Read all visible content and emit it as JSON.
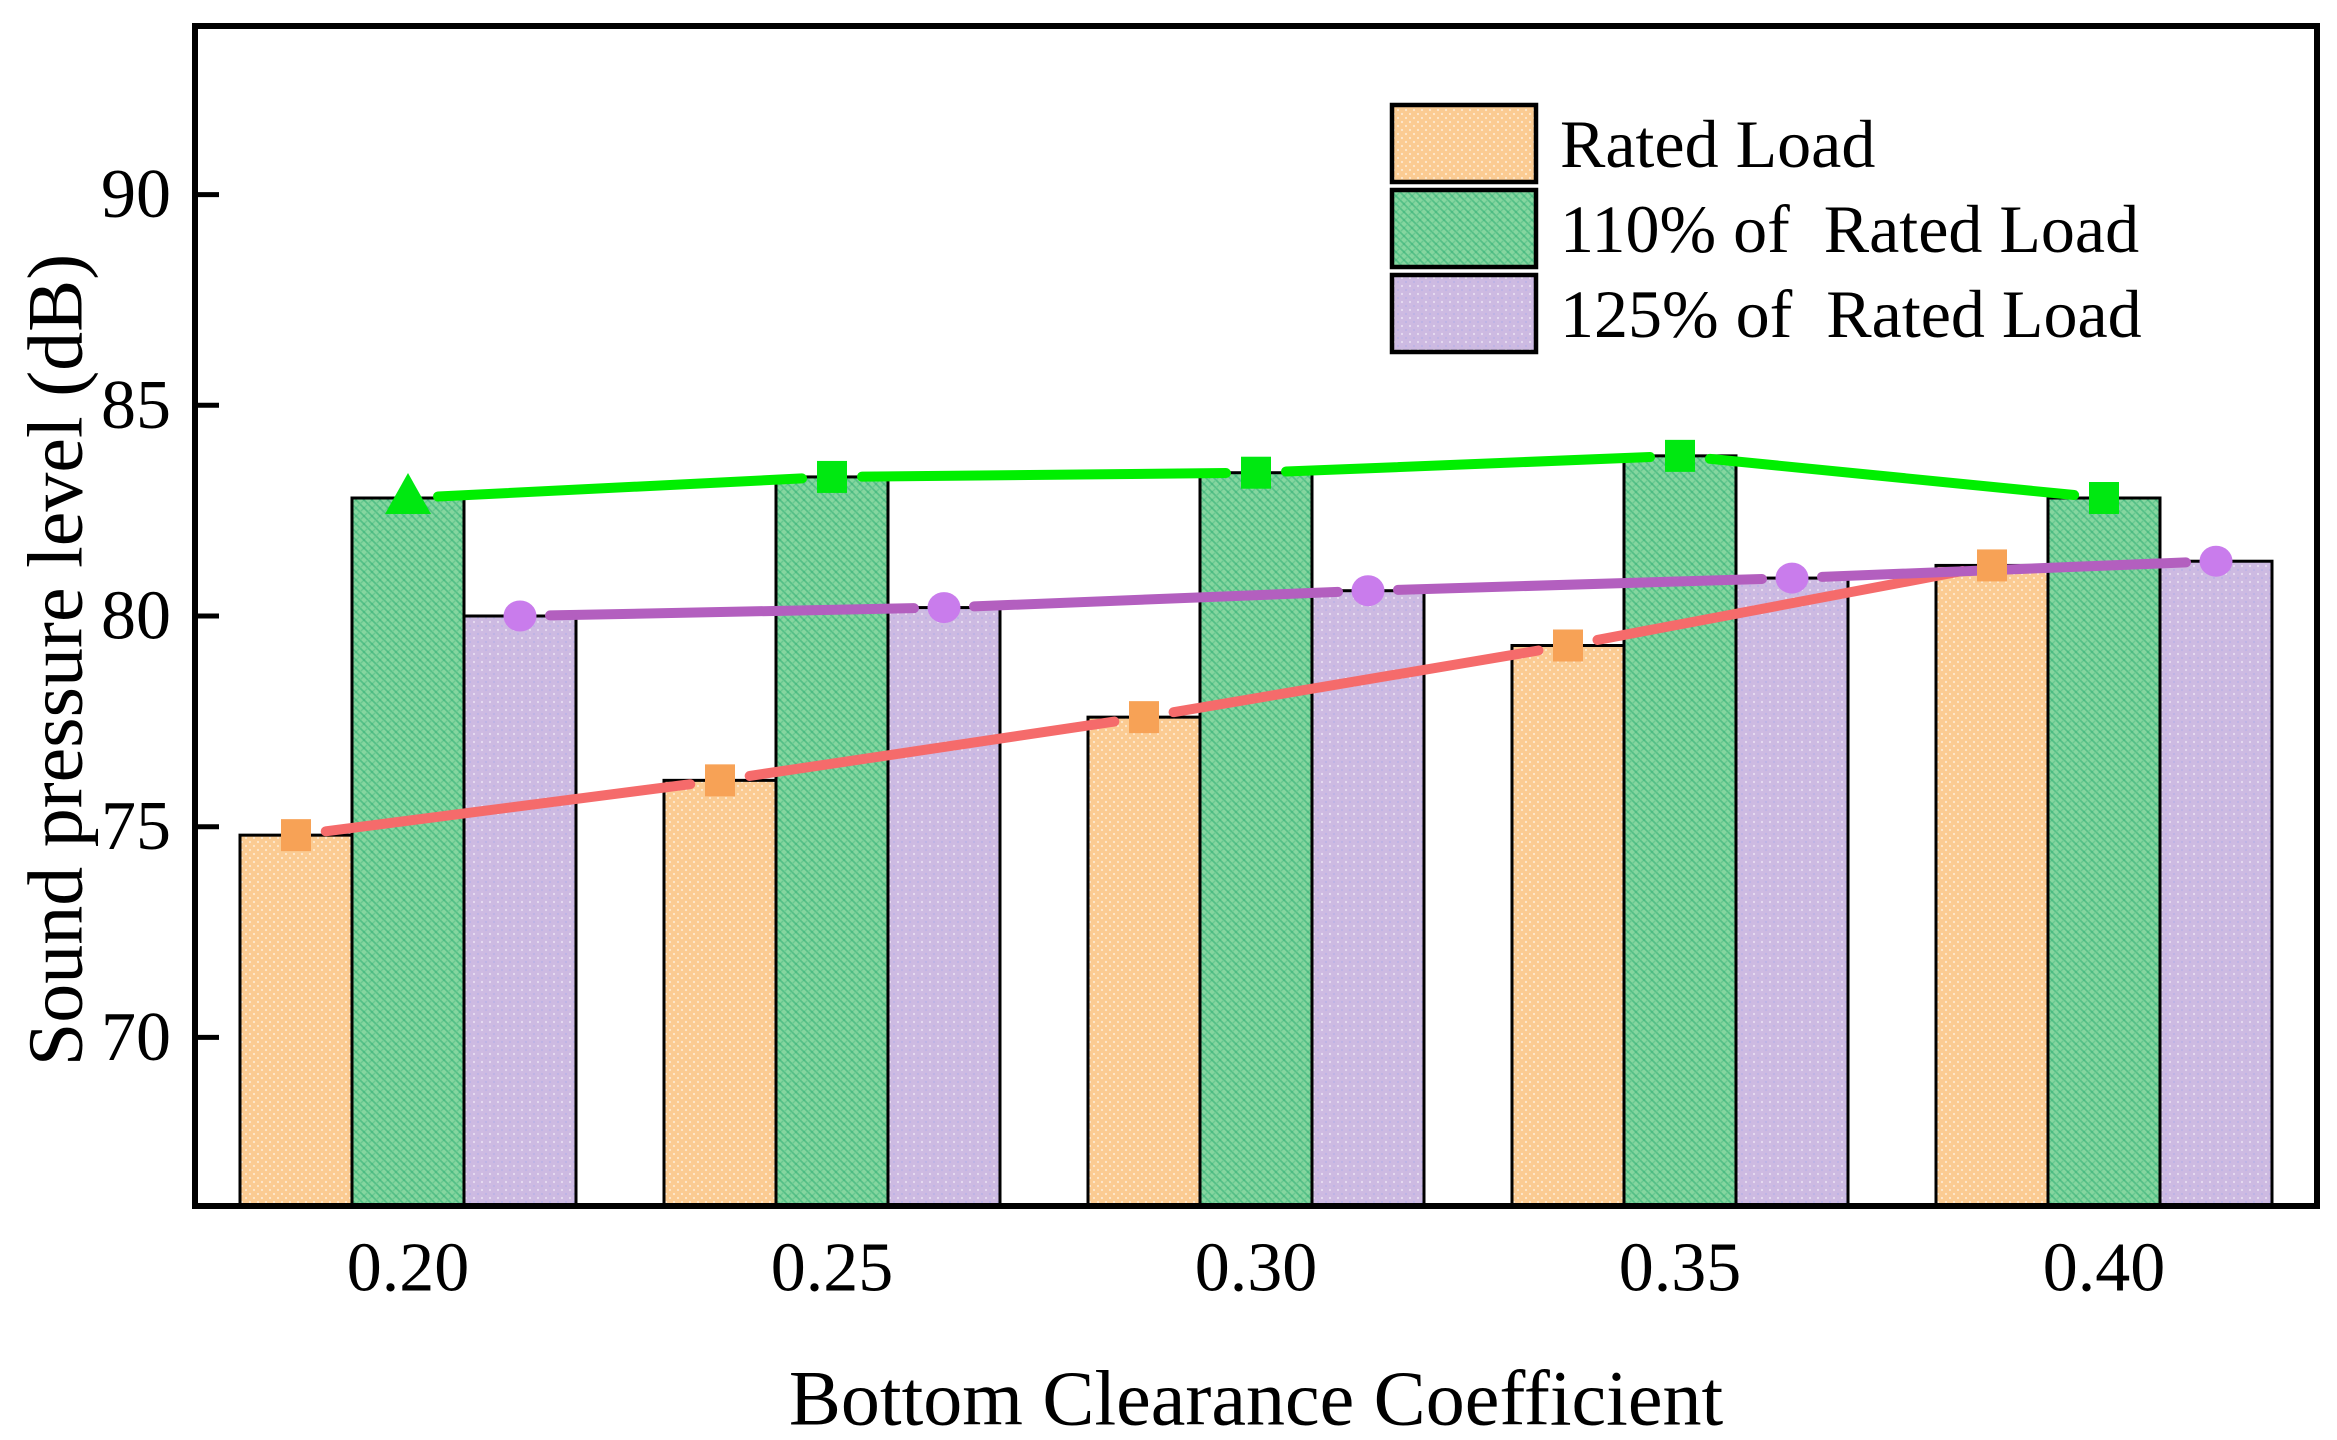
{
  "figure": {
    "kind": "grouped-bar-chart-with-line-overlay"
  },
  "legend": {
    "items": [
      {
        "label": "Rated Load"
      },
      {
        "label": "110% of  Rated Load"
      },
      {
        "label": "125% of  Rated Load"
      }
    ]
  },
  "chart_data": {
    "type": "bar",
    "overlay": "line",
    "title": "",
    "xlabel": "Bottom Clearance Coefficient",
    "ylabel": "Sound pressure level (dB)",
    "categories": [
      "0.20",
      "0.25",
      "0.30",
      "0.35",
      "0.40"
    ],
    "series": [
      {
        "name": "Rated Load",
        "values": [
          74.8,
          76.1,
          77.6,
          79.3,
          81.2
        ],
        "bar_color": "#FBCB92",
        "line_color": "#F56B6B",
        "marker_color": "#F7A256",
        "marker": "square"
      },
      {
        "name": "110% of  Rated Load",
        "values": [
          82.8,
          83.3,
          83.4,
          83.8,
          82.8
        ],
        "bar_color": "#85D69F",
        "line_color": "#00EF00",
        "marker_color": "#00E811",
        "marker": "square",
        "first_point_marker": "triangle"
      },
      {
        "name": "125% of  Rated Load",
        "values": [
          80.0,
          80.2,
          80.6,
          80.9,
          81.3
        ],
        "bar_color": "#CDBAE2",
        "line_color": "#B35FBF",
        "marker_color": "#C97CEC",
        "marker": "circle"
      }
    ],
    "ylim": [
      66,
      94
    ],
    "yticks": [
      70,
      75,
      80,
      85,
      90
    ],
    "grid": false,
    "legend_position": "top-right"
  }
}
